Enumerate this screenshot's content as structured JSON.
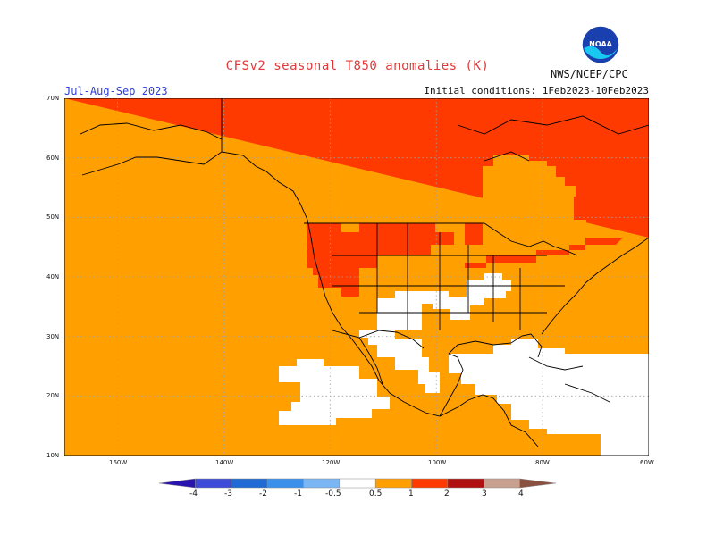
{
  "title": "CFSv2 seasonal T850 anomalies (K)",
  "period": "Jul-Aug-Sep 2023",
  "initial_conditions": "Initial conditions: 1Feb2023-10Feb2023",
  "agency": "NWS/NCEP/CPC",
  "logo_text": "NOAA",
  "map": {
    "lat_labels": [
      "70N",
      "60N",
      "50N",
      "40N",
      "30N",
      "20N",
      "10N"
    ],
    "lon_labels": [
      "160W",
      "140W",
      "120W",
      "100W",
      "80W",
      "60W"
    ],
    "extent": {
      "lon_min": -170,
      "lon_max": -60,
      "lat_min": 10,
      "lat_max": 70
    },
    "colors": {
      "white": "#ffffff",
      "orange": "#ff9f00",
      "red_orange": "#ff3a00",
      "boundary": "#000000",
      "grid": "#b0b0b0"
    }
  },
  "colorbar": {
    "labels": [
      "-4",
      "-3",
      "-2",
      "-1",
      "-0.5",
      "0.5",
      "1",
      "2",
      "3",
      "4"
    ],
    "colors": [
      "#2a14b0",
      "#3e4ad8",
      "#1f6ad4",
      "#3a90ea",
      "#7bb6f4",
      "#ffffff",
      "#ff9f00",
      "#ff3a00",
      "#b01010",
      "#c8a090",
      "#8a5040"
    ]
  }
}
